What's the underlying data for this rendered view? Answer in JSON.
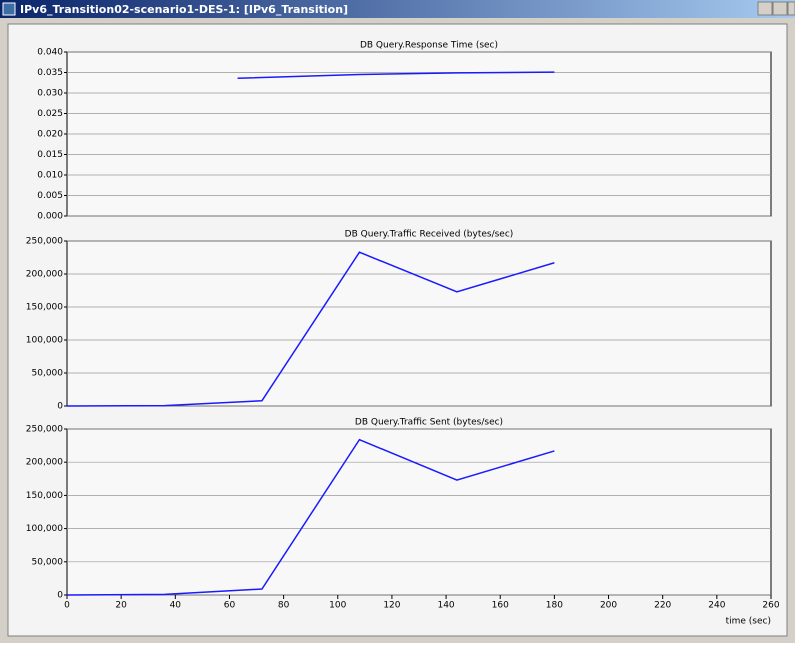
{
  "window": {
    "title": "IPv6_Transition02-scenario1-DES-1: [IPv6_Transition]"
  },
  "chart_data": [
    {
      "type": "line",
      "title": "DB Query.Response Time (sec)",
      "x": [
        63,
        108,
        144,
        180
      ],
      "series": [
        {
          "color": "#1a1aff",
          "values": [
            0.0336,
            0.0345,
            0.0349,
            0.0351
          ]
        }
      ],
      "xlim": [
        0,
        260
      ],
      "ylim": [
        0,
        0.04
      ],
      "yticks": [
        {
          "value": 0,
          "label": "0.000"
        },
        {
          "value": 0.005,
          "label": "0.005"
        },
        {
          "value": 0.01,
          "label": "0.010"
        },
        {
          "value": 0.015,
          "label": "0.015"
        },
        {
          "value": 0.02,
          "label": "0.020"
        },
        {
          "value": 0.025,
          "label": "0.025"
        },
        {
          "value": 0.03,
          "label": "0.030"
        },
        {
          "value": 0.035,
          "label": "0.035"
        },
        {
          "value": 0.04,
          "label": "0.040"
        }
      ],
      "grid": true
    },
    {
      "type": "line",
      "title": "DB Query.Traffic Received (bytes/sec)",
      "x": [
        0,
        36,
        72,
        108,
        144,
        180
      ],
      "series": [
        {
          "color": "#1a1aff",
          "values": [
            0,
            500,
            8000,
            233000,
            173000,
            217000
          ]
        }
      ],
      "xlim": [
        0,
        260
      ],
      "ylim": [
        0,
        250000
      ],
      "yticks": [
        0,
        {
          "value": 50000,
          "label": "50,000"
        },
        {
          "value": 100000,
          "label": "100,000"
        },
        {
          "value": 150000,
          "label": "150,000"
        },
        {
          "value": 200000,
          "label": "200,000"
        },
        {
          "value": 250000,
          "label": "250,000"
        }
      ],
      "grid": true
    },
    {
      "type": "line",
      "title": "DB Query.Traffic Sent (bytes/sec)",
      "x": [
        0,
        36,
        72,
        108,
        144,
        180
      ],
      "series": [
        {
          "color": "#1a1aff",
          "values": [
            0,
            1000,
            9000,
            234000,
            173000,
            217000
          ]
        }
      ],
      "xlim": [
        0,
        260
      ],
      "ylim": [
        0,
        250000
      ],
      "xticks": [
        0,
        20,
        40,
        60,
        80,
        100,
        120,
        140,
        160,
        180,
        200,
        220,
        240,
        260
      ],
      "x_label": "time (sec)",
      "yticks": [
        0,
        {
          "value": 50000,
          "label": "50,000"
        },
        {
          "value": 100000,
          "label": "100,000"
        },
        {
          "value": 150000,
          "label": "150,000"
        },
        {
          "value": 200000,
          "label": "200,000"
        },
        {
          "value": 250000,
          "label": "250,000"
        }
      ],
      "grid": true
    }
  ]
}
